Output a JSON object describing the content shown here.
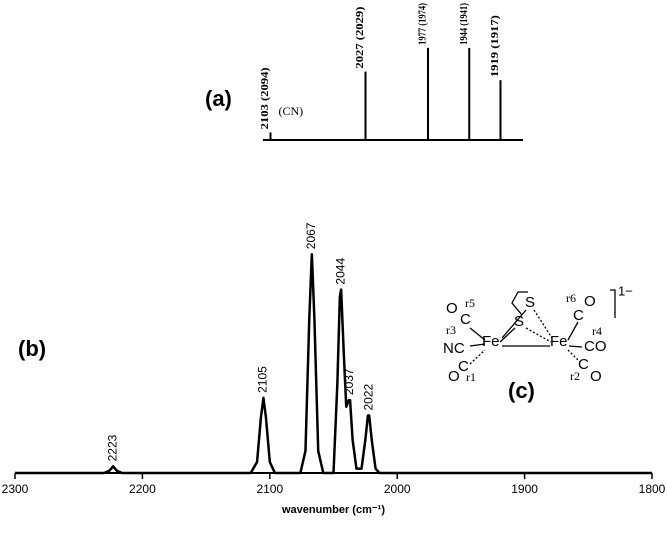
{
  "chart_data": [
    {
      "type": "line",
      "panel_label": "(b)",
      "x": [
        2300,
        2230,
        2226,
        2223,
        2220,
        2216,
        2115,
        2110,
        2107,
        2105,
        2103,
        2100,
        2096,
        2076,
        2072,
        2069,
        2067,
        2065,
        2062,
        2058,
        2050,
        2047,
        2045,
        2044,
        2042,
        2040,
        2038,
        2037,
        2035,
        2032,
        2028,
        2025,
        2023,
        2022,
        2020,
        2017,
        2014,
        1800
      ],
      "series": [
        {
          "color": "#000000",
          "values": [
            0,
            0,
            1,
            3,
            1,
            0,
            0,
            5,
            25,
            34,
            25,
            5,
            0,
            0,
            10,
            70,
            99,
            70,
            10,
            0,
            0,
            40,
            80,
            83,
            55,
            30,
            33,
            33,
            15,
            2,
            2,
            15,
            26,
            26,
            15,
            2,
            0,
            0
          ]
        }
      ],
      "xlim": [
        2300,
        1800
      ],
      "xticks": [
        2300,
        2200,
        2100,
        2000,
        1900,
        1800
      ],
      "ylim": [
        0,
        100
      ],
      "xlabel": "wavenumber (cm⁻¹)",
      "annotations": [
        {
          "label": "2223",
          "x": 2223,
          "y": 3
        },
        {
          "label": "2105",
          "x": 2105,
          "y": 34
        },
        {
          "label": "2067",
          "x": 2067,
          "y": 99
        },
        {
          "label": "2044",
          "x": 2044,
          "y": 83
        },
        {
          "label": "2037",
          "x": 2037,
          "y": 33
        },
        {
          "label": "2022",
          "x": 2022,
          "y": 26
        }
      ]
    },
    {
      "type": "stick",
      "panel_label": "(a)",
      "x": [
        2103,
        2027,
        1977,
        1944,
        1919
      ],
      "values": [
        8,
        72,
        97,
        97,
        63
      ],
      "labels": [
        "2103 (2094)",
        "2027 (2029)",
        "1977 (1974)",
        "1944 (1941)",
        "1919 (1917)"
      ],
      "color": "#000000",
      "xlim": [
        2109,
        1901
      ],
      "ylim": [
        0,
        100
      ],
      "annotation": "(CN)"
    }
  ],
  "structure": {
    "panel_label": "(c)",
    "charge": "1−",
    "labels": [
      "S",
      "S",
      "Fe",
      "Fe",
      "O",
      "C",
      "r5",
      "r3",
      "NC",
      "C",
      "O",
      "r1",
      "O",
      "C",
      "r6",
      "r4",
      "CO",
      "C",
      "O",
      "r2"
    ]
  }
}
